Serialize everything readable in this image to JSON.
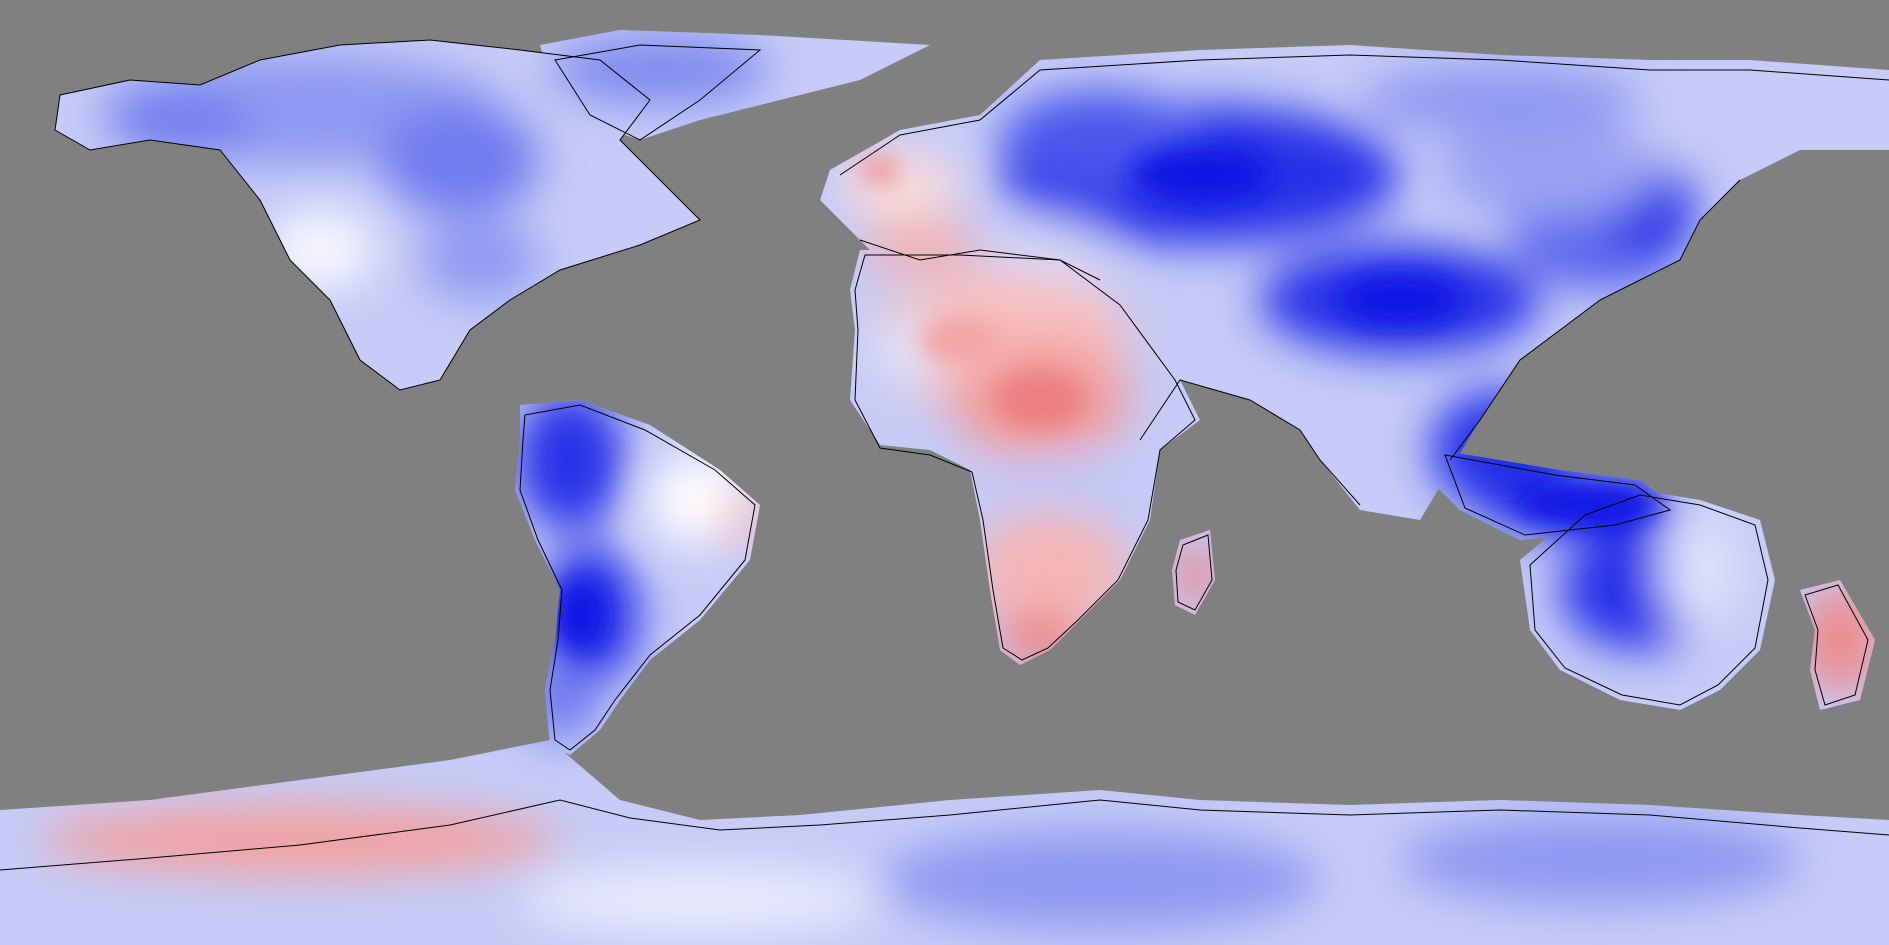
{
  "map": {
    "projection": "equirectangular",
    "ocean_color": "#808080",
    "coastline_color": "#000000",
    "palette": {
      "strong_negative": "#0a14e6",
      "negative": "#5a6af0",
      "weak_negative": "#b4bcf6",
      "neutral": "#ffffff",
      "weak_positive": "#f8c8c8",
      "positive": "#f08c8c",
      "strong_positive": "#e85a5a"
    }
  }
}
